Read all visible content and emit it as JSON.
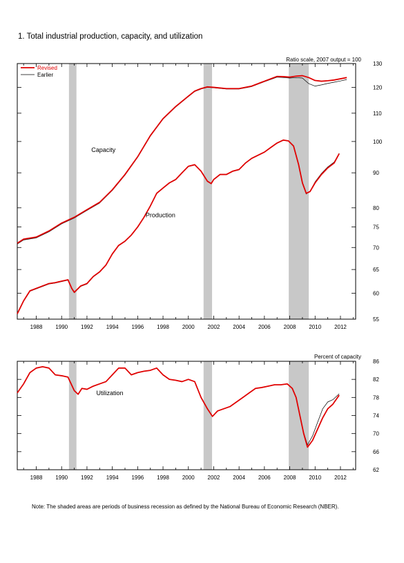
{
  "figure": {
    "title": "1. Total industrial production, capacity, and utilization",
    "note": "Note: The shaded areas are periods of business recession as defined by the National Bureau of Economic Research (NBER)."
  },
  "colors": {
    "revised": "#e00000",
    "earlier": "#000000",
    "recession": "#c8c8c8",
    "axis": "#000000"
  },
  "chart_data": [
    {
      "type": "line",
      "title": "1. Total industrial production, capacity, and utilization",
      "ylabel": "Ratio scale, 2007 output = 100",
      "y_scale": "log",
      "ylim": [
        55,
        130
      ],
      "y_ticks": [
        55,
        60,
        65,
        70,
        75,
        80,
        90,
        100,
        110,
        120,
        130
      ],
      "y_axis_side": "right",
      "xlim": [
        1986.5,
        2013.2
      ],
      "x_ticks": [
        1988,
        1990,
        1992,
        1994,
        1996,
        1998,
        2000,
        2002,
        2004,
        2006,
        2008,
        2010,
        2012
      ],
      "legend": {
        "position": "top-left",
        "entries": [
          "Revised",
          "Earlier"
        ]
      },
      "recessions": [
        [
          1990.58,
          1991.17
        ],
        [
          2001.2,
          2001.87
        ],
        [
          2007.92,
          2009.5
        ]
      ],
      "annotations": [
        {
          "text": "Capacity",
          "x": 1993.3,
          "y": 96.5
        },
        {
          "text": "Production",
          "x": 1997.8,
          "y": 77.5
        }
      ],
      "series": [
        {
          "name": "Revised",
          "group": "Capacity",
          "x": [
            1986.5,
            1987.0,
            1988.0,
            1989.0,
            1990.0,
            1991.0,
            1992.0,
            1993.0,
            1994.0,
            1995.0,
            1996.0,
            1997.0,
            1998.0,
            1999.0,
            2000.0,
            2000.5,
            2001.0,
            2001.5,
            2002.0,
            2003.0,
            2004.0,
            2005.0,
            2006.0,
            2007.0,
            2007.5,
            2008.0,
            2008.5,
            2009.0,
            2009.5,
            2010.0,
            2010.5,
            2011.0,
            2011.5,
            2012.0,
            2012.5
          ],
          "y": [
            71.0,
            72.0,
            72.5,
            74.0,
            76.0,
            77.5,
            79.5,
            81.5,
            85.0,
            89.5,
            95.0,
            102.0,
            108.0,
            112.5,
            116.5,
            118.5,
            119.5,
            120.2,
            120.0,
            119.5,
            119.5,
            120.5,
            122.5,
            124.5,
            124.4,
            124.2,
            124.6,
            124.8,
            124.0,
            122.8,
            122.5,
            122.7,
            123.0,
            123.5,
            124.0
          ]
        },
        {
          "name": "Earlier",
          "group": "Capacity",
          "x": [
            1986.5,
            1987.0,
            1988.0,
            1989.0,
            1990.0,
            1991.0,
            1992.0,
            1993.0,
            1994.0,
            1995.0,
            1996.0,
            1997.0,
            1998.0,
            1999.0,
            2000.0,
            2000.5,
            2001.0,
            2001.5,
            2002.0,
            2003.0,
            2004.0,
            2005.0,
            2006.0,
            2007.0,
            2007.5,
            2008.0,
            2008.5,
            2009.0,
            2009.5,
            2010.0,
            2010.5,
            2011.0,
            2011.5,
            2012.0,
            2012.5
          ],
          "y": [
            70.8,
            71.8,
            72.3,
            73.8,
            75.8,
            77.3,
            79.3,
            81.3,
            84.8,
            89.3,
            94.8,
            101.8,
            107.8,
            112.3,
            116.3,
            118.3,
            119.3,
            120.0,
            119.8,
            119.3,
            119.3,
            120.3,
            122.3,
            124.2,
            124.0,
            123.8,
            124.0,
            123.8,
            121.5,
            120.5,
            121.0,
            121.6,
            122.1,
            122.6,
            123.2
          ]
        },
        {
          "name": "Revised",
          "group": "Production",
          "x": [
            1986.5,
            1987.0,
            1987.5,
            1988.0,
            1988.5,
            1989.0,
            1989.5,
            1990.0,
            1990.5,
            1990.8,
            1991.0,
            1991.5,
            1992.0,
            1992.5,
            1993.0,
            1993.5,
            1994.0,
            1994.5,
            1995.0,
            1995.5,
            1996.0,
            1996.5,
            1997.0,
            1997.5,
            1998.0,
            1998.5,
            1999.0,
            1999.5,
            2000.0,
            2000.5,
            2001.0,
            2001.5,
            2001.8,
            2002.0,
            2002.5,
            2003.0,
            2003.5,
            2004.0,
            2004.5,
            2005.0,
            2005.5,
            2006.0,
            2006.5,
            2007.0,
            2007.5,
            2007.9,
            2008.3,
            2008.7,
            2009.0,
            2009.3,
            2009.6,
            2010.0,
            2010.5,
            2011.0,
            2011.5,
            2011.9
          ],
          "y": [
            56.0,
            58.5,
            60.5,
            61.0,
            61.5,
            62.0,
            62.2,
            62.5,
            62.8,
            61.0,
            60.2,
            61.5,
            62.0,
            63.5,
            64.5,
            66.0,
            68.5,
            70.5,
            71.5,
            73.0,
            75.0,
            77.5,
            80.5,
            84.0,
            85.5,
            87.0,
            88.0,
            90.0,
            92.0,
            92.5,
            90.5,
            87.5,
            86.8,
            88.0,
            89.5,
            89.5,
            90.5,
            91.0,
            93.0,
            94.5,
            95.5,
            96.5,
            98.0,
            99.5,
            100.5,
            100.2,
            98.5,
            92.5,
            87.0,
            84.0,
            84.5,
            87.0,
            89.5,
            91.5,
            93.0,
            96.0
          ]
        },
        {
          "name": "Earlier",
          "group": "Production",
          "x": [
            1986.5,
            1987.0,
            1987.5,
            1988.0,
            1988.5,
            1989.0,
            1989.5,
            1990.0,
            1990.5,
            1990.8,
            1991.0,
            1991.5,
            1992.0,
            1992.5,
            1993.0,
            1993.5,
            1994.0,
            1994.5,
            1995.0,
            1995.5,
            1996.0,
            1996.5,
            1997.0,
            1997.5,
            1998.0,
            1998.5,
            1999.0,
            1999.5,
            2000.0,
            2000.5,
            2001.0,
            2001.5,
            2001.8,
            2002.0,
            2002.5,
            2003.0,
            2003.5,
            2004.0,
            2004.5,
            2005.0,
            2005.5,
            2006.0,
            2006.5,
            2007.0,
            2007.5,
            2007.9,
            2008.3,
            2008.7,
            2009.0,
            2009.3,
            2009.6,
            2010.0,
            2010.5,
            2011.0,
            2011.5,
            2011.9
          ],
          "y": [
            55.9,
            58.4,
            60.4,
            60.9,
            61.4,
            61.9,
            62.1,
            62.4,
            62.7,
            60.9,
            60.1,
            61.4,
            61.9,
            63.4,
            64.4,
            65.9,
            68.4,
            70.4,
            71.4,
            72.9,
            74.9,
            77.4,
            80.4,
            83.9,
            85.4,
            86.9,
            87.9,
            89.9,
            91.9,
            92.4,
            90.4,
            87.4,
            86.7,
            87.9,
            89.4,
            89.4,
            90.4,
            90.9,
            92.9,
            94.4,
            95.4,
            96.4,
            97.9,
            99.4,
            100.4,
            100.1,
            98.4,
            92.4,
            86.8,
            83.8,
            84.6,
            87.3,
            89.8,
            91.8,
            93.3,
            96.1
          ]
        }
      ]
    },
    {
      "type": "line",
      "ylabel": "Percent of capacity",
      "ylim": [
        62,
        86
      ],
      "y_ticks": [
        62,
        66,
        70,
        74,
        78,
        82,
        86
      ],
      "y_axis_side": "right",
      "xlim": [
        1986.5,
        2013.2
      ],
      "x_ticks": [
        1988,
        1990,
        1992,
        1994,
        1996,
        1998,
        2000,
        2002,
        2004,
        2006,
        2008,
        2010,
        2012
      ],
      "recessions": [
        [
          1990.58,
          1991.17
        ],
        [
          2001.2,
          2001.87
        ],
        [
          2007.92,
          2009.5
        ]
      ],
      "annotations": [
        {
          "text": "Utilization",
          "x": 1993.8,
          "y": 78.5
        }
      ],
      "series": [
        {
          "name": "Revised",
          "x": [
            1986.5,
            1987.0,
            1987.5,
            1988.0,
            1988.5,
            1989.0,
            1989.5,
            1990.0,
            1990.5,
            1991.0,
            1991.3,
            1991.6,
            1992.0,
            1992.5,
            1993.0,
            1993.5,
            1994.0,
            1994.5,
            1995.0,
            1995.5,
            1996.0,
            1996.5,
            1997.0,
            1997.5,
            1998.0,
            1998.5,
            1999.0,
            1999.5,
            2000.0,
            2000.5,
            2001.0,
            2001.5,
            2001.9,
            2002.3,
            2002.8,
            2003.3,
            2003.8,
            2004.3,
            2004.8,
            2005.3,
            2005.8,
            2006.3,
            2006.8,
            2007.3,
            2007.8,
            2008.2,
            2008.5,
            2008.8,
            2009.1,
            2009.4,
            2009.8,
            2010.2,
            2010.6,
            2011.0,
            2011.4,
            2011.9
          ],
          "y": [
            79.0,
            81.0,
            83.5,
            84.5,
            84.8,
            84.5,
            83.0,
            82.8,
            82.5,
            79.5,
            78.7,
            80.0,
            79.8,
            80.5,
            81.0,
            81.5,
            83.0,
            84.5,
            84.5,
            83.0,
            83.5,
            83.8,
            84.0,
            84.5,
            83.0,
            82.0,
            81.8,
            81.5,
            82.0,
            81.5,
            78.0,
            75.5,
            73.8,
            75.0,
            75.5,
            76.0,
            77.0,
            78.0,
            79.0,
            80.0,
            80.2,
            80.5,
            80.8,
            80.8,
            81.0,
            80.0,
            78.0,
            74.0,
            70.0,
            67.0,
            68.5,
            71.0,
            73.5,
            75.5,
            76.5,
            78.5
          ]
        },
        {
          "name": "Earlier",
          "x": [
            1986.5,
            1987.0,
            1987.5,
            1988.0,
            1988.5,
            1989.0,
            1989.5,
            1990.0,
            1990.5,
            1991.0,
            1991.3,
            1991.6,
            1992.0,
            1992.5,
            1993.0,
            1993.5,
            1994.0,
            1994.5,
            1995.0,
            1995.5,
            1996.0,
            1996.5,
            1997.0,
            1997.5,
            1998.0,
            1998.5,
            1999.0,
            1999.5,
            2000.0,
            2000.5,
            2001.0,
            2001.5,
            2001.9,
            2002.3,
            2002.8,
            2003.3,
            2003.8,
            2004.3,
            2004.8,
            2005.3,
            2005.8,
            2006.3,
            2006.8,
            2007.3,
            2007.8,
            2008.2,
            2008.5,
            2008.8,
            2009.1,
            2009.4,
            2009.8,
            2010.2,
            2010.6,
            2011.0,
            2011.4,
            2011.9
          ],
          "y": [
            79.0,
            81.0,
            83.5,
            84.5,
            84.8,
            84.5,
            83.0,
            82.8,
            82.5,
            79.5,
            78.7,
            80.0,
            79.8,
            80.5,
            81.0,
            81.5,
            83.0,
            84.5,
            84.5,
            83.0,
            83.5,
            83.8,
            84.0,
            84.5,
            83.0,
            82.0,
            81.8,
            81.5,
            82.0,
            81.5,
            78.0,
            75.5,
            73.8,
            75.0,
            75.5,
            76.0,
            77.0,
            78.0,
            79.0,
            80.0,
            80.2,
            80.5,
            80.8,
            80.8,
            81.0,
            80.0,
            78.0,
            74.0,
            70.2,
            67.5,
            69.5,
            72.5,
            75.5,
            77.0,
            77.5,
            78.8
          ]
        }
      ]
    }
  ]
}
